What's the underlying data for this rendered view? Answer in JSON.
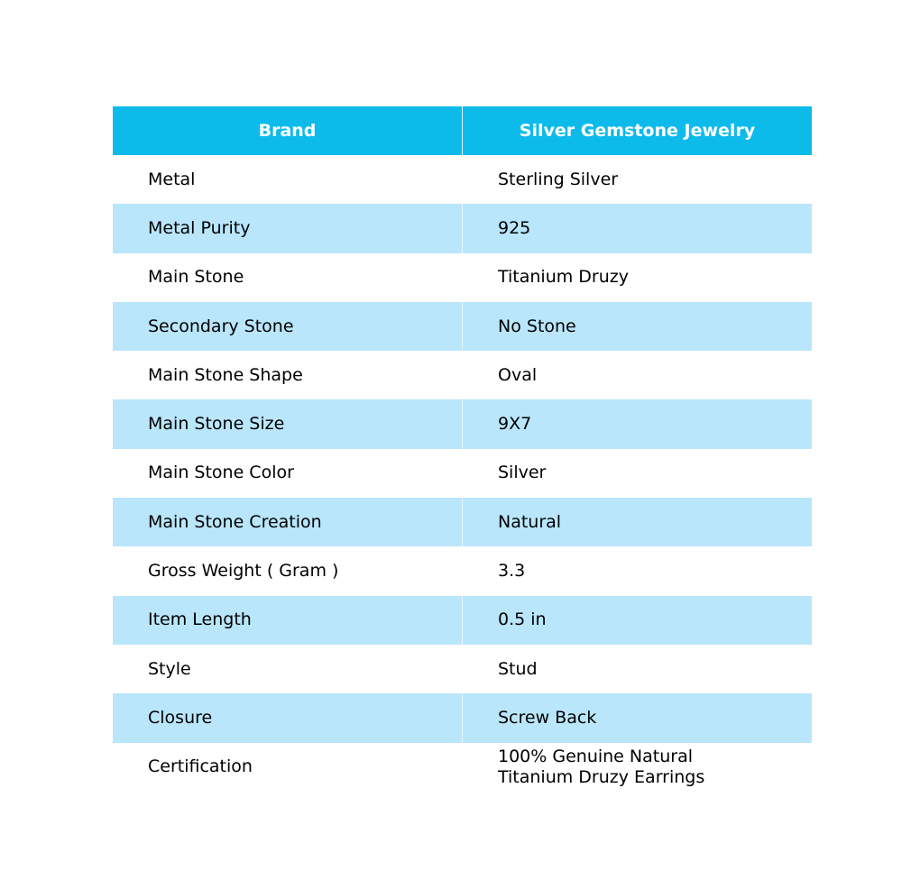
{
  "header": {
    "col1": "Brand",
    "col2": "Silver Gemstone Jewelry"
  },
  "colors": {
    "header_bg": "#0dbbeb",
    "alt_row_bg": "#b9e6fb"
  },
  "rows": [
    {
      "label": "Metal",
      "value": "Sterling Silver"
    },
    {
      "label": "Metal Purity",
      "value": "925"
    },
    {
      "label": "Main Stone",
      "value": "Titanium Druzy"
    },
    {
      "label": "Secondary Stone",
      "value": "No Stone"
    },
    {
      "label": "Main Stone Shape",
      "value": "Oval"
    },
    {
      "label": "Main Stone Size",
      "value": "9X7"
    },
    {
      "label": "Main Stone Color",
      "value": "Silver"
    },
    {
      "label": "Main Stone Creation",
      "value": "Natural"
    },
    {
      "label": "Gross Weight ( Gram )",
      "value": "3.3"
    },
    {
      "label": "Item Length",
      "value": "0.5 in"
    },
    {
      "label": "Style",
      "value": "Stud"
    },
    {
      "label": "Closure",
      "value": "Screw Back"
    },
    {
      "label": "Certification",
      "value": "100% Genuine Natural\nTitanium Druzy Earrings"
    }
  ]
}
